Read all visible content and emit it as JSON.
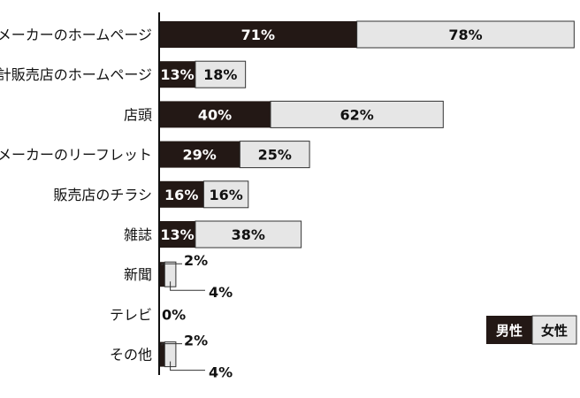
{
  "chart_data": {
    "type": "bar",
    "orientation": "horizontal",
    "stacked": true,
    "categories": [
      "メーカーのホームページ",
      "時計販売店のホームページ",
      "店頭",
      "メーカーのリーフレット",
      "販売店のチラシ",
      "雑誌",
      "新聞",
      "テレビ",
      "その他"
    ],
    "series": [
      {
        "name": "男性",
        "values": [
          71,
          13,
          40,
          29,
          16,
          13,
          2,
          0,
          2
        ],
        "labels": [
          "71%",
          "13%",
          "40%",
          "29%",
          "16%",
          "13%",
          "2%",
          "0%",
          "2%"
        ]
      },
      {
        "name": "女性",
        "values": [
          78,
          18,
          62,
          25,
          16,
          38,
          4,
          0,
          4
        ],
        "labels": [
          "78%",
          "18%",
          "62%",
          "25%",
          "16%",
          "38%",
          "4%",
          "",
          "4%"
        ]
      }
    ],
    "unit": "%",
    "legend_position": "bottom-right",
    "grid": false
  },
  "colors": {
    "male": "#231815",
    "female": "#e6e6e6",
    "outline": "#333333",
    "axis": "#111111"
  }
}
